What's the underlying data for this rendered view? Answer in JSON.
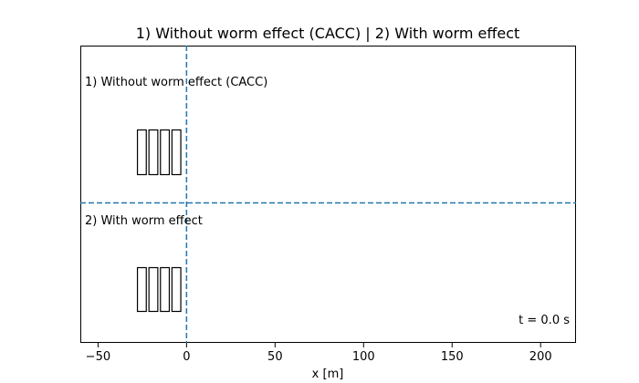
{
  "chart_data": {
    "type": "scatter",
    "title": "1) Without worm effect (CACC)  |  2) With worm effect",
    "xlabel": "x [m]",
    "ylabel": "",
    "xlim": [
      -60,
      220
    ],
    "x_ticks": [
      -50,
      0,
      50,
      100,
      150,
      200
    ],
    "grid": false,
    "reference_lines": {
      "vertical_x": 0,
      "horizontal_split": true,
      "color": "#1f77b4",
      "style": "dashed"
    },
    "panels": [
      {
        "label": "1) Without worm effect (CACC)",
        "vehicles": [
          {
            "x_start": -28,
            "x_end": -23
          },
          {
            "x_start": -21.5,
            "x_end": -16.5
          },
          {
            "x_start": -15,
            "x_end": -10
          },
          {
            "x_start": -8.5,
            "x_end": -3.5
          }
        ]
      },
      {
        "label": "2) With worm effect",
        "vehicles": [
          {
            "x_start": -28,
            "x_end": -23
          },
          {
            "x_start": -21.5,
            "x_end": -16.5
          },
          {
            "x_start": -15,
            "x_end": -10
          },
          {
            "x_start": -8.5,
            "x_end": -3.5
          }
        ]
      }
    ],
    "annotation": "t = 0.0 s"
  }
}
